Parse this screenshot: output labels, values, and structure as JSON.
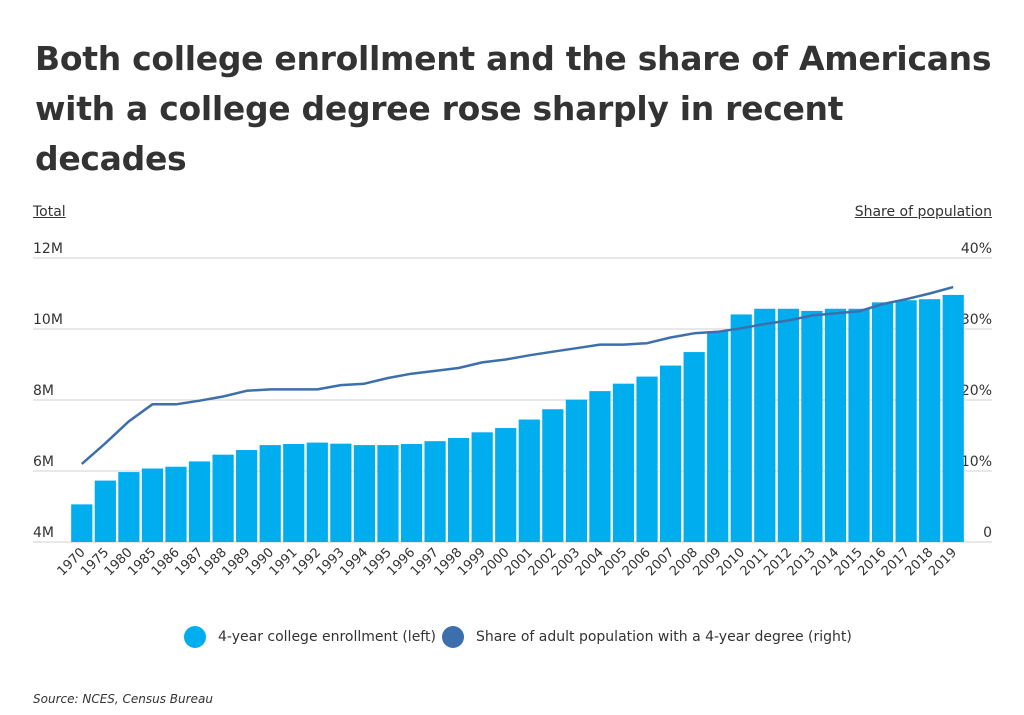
{
  "title": "Both college enrollment and the share of Americans with a college degree rose sharply in recent decades",
  "source": "Source:  NCES, Census Bureau",
  "chart_data": {
    "type": "bar",
    "combo": "bar + line (dual axis)",
    "left_axis_title": "Total",
    "right_axis_title": "Share of population",
    "left_ticks": [
      "4M",
      "6M",
      "8M",
      "10M",
      "12M"
    ],
    "left_tick_values": [
      4,
      6,
      8,
      10,
      12
    ],
    "right_ticks": [
      "0",
      "10%",
      "20%",
      "30%",
      "40%"
    ],
    "right_tick_values": [
      0,
      10,
      20,
      30,
      40
    ],
    "left_range": [
      4,
      12
    ],
    "right_range": [
      0,
      40
    ],
    "grid": "horizontal",
    "legend_position": "bottom",
    "categories": [
      "1970",
      "1975",
      "1980",
      "1985",
      "1986",
      "1987",
      "1988",
      "1989",
      "1990",
      "1991",
      "1992",
      "1993",
      "1994",
      "1995",
      "1996",
      "1997",
      "1998",
      "1999",
      "2000",
      "2001",
      "2002",
      "2003",
      "2004",
      "2005",
      "2006",
      "2007",
      "2008",
      "2009",
      "2010",
      "2011",
      "2012",
      "2013",
      "2014",
      "2015",
      "2016",
      "2017",
      "2018",
      "2019"
    ],
    "series": [
      {
        "name": "4-year college enrollment (left)",
        "type": "bar",
        "axis": "left",
        "unit": "millions",
        "color": "#00adef",
        "values": [
          5.06,
          5.73,
          5.97,
          6.07,
          6.12,
          6.27,
          6.46,
          6.59,
          6.73,
          6.76,
          6.8,
          6.77,
          6.73,
          6.73,
          6.76,
          6.84,
          6.93,
          7.09,
          7.21,
          7.45,
          7.74,
          8.01,
          8.25,
          8.46,
          8.66,
          8.97,
          9.35,
          9.93,
          10.41,
          10.57,
          10.57,
          10.51,
          10.57,
          10.57,
          10.75,
          10.81,
          10.84,
          10.96
        ]
      },
      {
        "name": "Share of adult population with a 4-year degree (right)",
        "type": "line",
        "axis": "right",
        "unit": "percent",
        "color": "#3d6fad",
        "values": [
          11.0,
          13.9,
          17.0,
          19.4,
          19.4,
          19.9,
          20.5,
          21.3,
          21.5,
          21.5,
          21.5,
          22.1,
          22.3,
          23.1,
          23.7,
          24.1,
          24.5,
          25.3,
          25.7,
          26.3,
          26.8,
          27.3,
          27.8,
          27.8,
          28.0,
          28.8,
          29.4,
          29.6,
          30.1,
          30.7,
          31.2,
          31.9,
          32.2,
          32.5,
          33.5,
          34.2,
          35.0,
          35.9
        ]
      }
    ]
  }
}
